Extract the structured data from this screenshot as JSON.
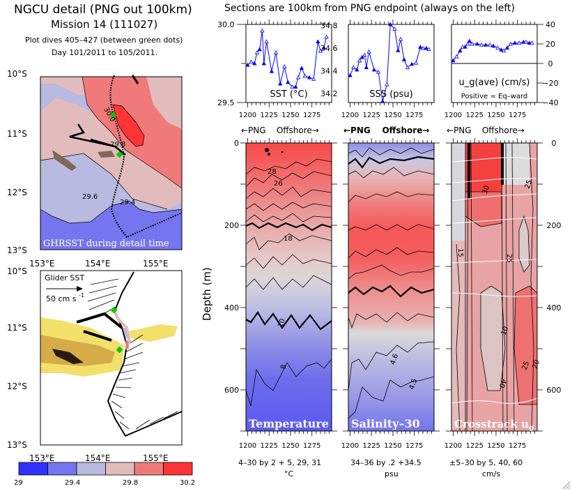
{
  "header": {
    "title": "NGCU detail (PNG out 100km)",
    "mission": "Mission 14 (111027)",
    "dives": "Plot dives 405–427 (between green dots)",
    "days": "Day 101/2011 to 105/2011.",
    "sections_title": "Sections are 100km from PNG endpoint (always on the left)"
  },
  "maps": {
    "lat_ticks": [
      "10°S",
      "11°S",
      "12°S",
      "13°S"
    ],
    "lon_ticks": [
      "153°E",
      "154°E",
      "155°E"
    ],
    "top_map_label": "GHRSST during detail time",
    "top_map_contour_labels": [
      "30.0",
      "29.8",
      "29.6",
      "29.4"
    ],
    "bottom_map_label": "Glider SST ",
    "bottom_map_scale_label": "50 cm s",
    "bottom_map_scale_sup": "-1",
    "colorbar": {
      "ticks": [
        "29",
        "29.4",
        "29.8",
        "30.2"
      ],
      "colors": [
        "#3030ff",
        "#7575ef",
        "#b8bae0",
        "#e2bcbc",
        "#f07a7a",
        "#fd3535"
      ]
    },
    "marker_color": "#00cc00"
  },
  "sections": {
    "offshore_caption": "←PNG    Offshore→",
    "x_ticks": [
      "1200",
      "1225",
      "1250",
      "1275"
    ],
    "depth_axis_label": "Depth (m)",
    "depth_ticks_left": [
      "0",
      "200",
      "400",
      "600"
    ],
    "depth_ticks_right": [
      "0",
      "200",
      "400",
      "600"
    ],
    "panels": [
      {
        "name": "Temperature",
        "contour_spec": "4–30 by 2 + 5, 29, 31",
        "units": "°C",
        "contour_labels": [
          "28",
          "26",
          "18",
          "10",
          "8"
        ]
      },
      {
        "name": "Salinity–30",
        "contour_spec": "34–36 by .2 +34.5",
        "units": "psu",
        "contour_labels": [
          "4.6",
          "4.5"
        ]
      },
      {
        "name": "Crosstrack u",
        "name_sub": "g",
        "contour_spec": "±5–30 by 5, 40, 60",
        "units": "cm/s",
        "contour_labels": [
          "30",
          "25",
          "15",
          "25",
          "40",
          "10",
          "25",
          "20",
          "40"
        ]
      }
    ]
  },
  "chart_data": [
    {
      "type": "line",
      "title": "SST (°C)",
      "xlabel": "←PNG    Offshore→",
      "ylabel": "",
      "xlim": [
        1198,
        1298
      ],
      "ylim": [
        29.5,
        30.0
      ],
      "y_ticks": [
        "30.0",
        "29.5"
      ],
      "x_ticks": [
        "1200",
        "1225",
        "1250",
        "1275"
      ],
      "color": "#0000ff",
      "x": [
        1200,
        1204,
        1208,
        1211,
        1214,
        1217,
        1219,
        1222,
        1228,
        1233,
        1238,
        1243,
        1247,
        1252,
        1256,
        1259,
        1263,
        1267,
        1272,
        1277,
        1282,
        1285,
        1289,
        1292
      ],
      "values": [
        29.74,
        29.76,
        29.75,
        29.82,
        29.84,
        29.96,
        29.75,
        29.89,
        29.7,
        29.82,
        29.62,
        29.73,
        29.63,
        29.6,
        29.6,
        29.66,
        29.72,
        29.67,
        29.66,
        29.65,
        29.89,
        29.83,
        29.85,
        29.92
      ]
    },
    {
      "type": "line",
      "title": "SSS (psu)",
      "xlabel": "←PNG    Offshore→",
      "xlim": [
        1198,
        1298
      ],
      "ylim": [
        34.12,
        34.81
      ],
      "y_ticks": [
        "34.8",
        "34.6",
        "34.4",
        "34.2"
      ],
      "x_ticks": [
        "1200",
        "1225",
        "1250",
        "1275"
      ],
      "color": "#0000ff",
      "x": [
        1200,
        1204,
        1208,
        1211,
        1214,
        1217,
        1219,
        1222,
        1228,
        1233,
        1238,
        1243,
        1247,
        1252,
        1256,
        1259,
        1263,
        1267,
        1272,
        1277,
        1282,
        1285,
        1289,
        1292
      ],
      "values": [
        34.36,
        34.43,
        34.41,
        34.49,
        34.52,
        34.54,
        34.43,
        34.57,
        34.41,
        34.39,
        34.13,
        34.28,
        34.81,
        34.77,
        34.58,
        34.68,
        34.5,
        34.43,
        34.46,
        34.47,
        34.61,
        34.6,
        34.6,
        34.59
      ]
    },
    {
      "type": "line",
      "title": "u_g(ave) (cm/s)",
      "subtitle": "Positive = Eq–ward",
      "xlim": [
        1198,
        1298
      ],
      "ylim": [
        -40,
        40
      ],
      "y_ticks": [
        "40",
        "20",
        "0",
        "−20",
        "−40"
      ],
      "x_ticks": [
        "1200",
        "1225",
        "1250",
        "1275"
      ],
      "color": "#0000ff",
      "x": [
        1200,
        1204,
        1208,
        1211,
        1214,
        1217,
        1219,
        1222,
        1228,
        1233,
        1238,
        1243,
        1247,
        1252,
        1256,
        1259,
        1263,
        1267,
        1272,
        1277,
        1282,
        1285,
        1289,
        1292
      ],
      "values": [
        3,
        7,
        13,
        17,
        17,
        20,
        23,
        20,
        20,
        19,
        19,
        19,
        18,
        16,
        14,
        13,
        16,
        20,
        21,
        21,
        22,
        22,
        21,
        21
      ]
    },
    {
      "type": "heatmap",
      "title": "Temperature",
      "xlim": [
        1198,
        1298
      ],
      "ylim": [
        700,
        0
      ],
      "contour_levels_c": [
        30,
        28,
        26,
        24,
        22,
        20,
        18,
        16,
        14,
        12,
        10,
        8,
        6,
        4
      ]
    },
    {
      "type": "heatmap",
      "title": "Salinity–30",
      "xlim": [
        1198,
        1298
      ],
      "ylim": [
        700,
        0
      ],
      "contour_levels_psu": [
        34.0,
        34.2,
        34.4,
        34.5,
        34.6,
        34.8,
        35.0,
        35.2,
        35.4,
        35.6
      ]
    },
    {
      "type": "heatmap",
      "title": "Crosstrack u_g",
      "xlim": [
        1198,
        1298
      ],
      "ylim": [
        700,
        0
      ],
      "contour_levels_cms": [
        -30,
        -25,
        -20,
        -15,
        -10,
        -5,
        5,
        10,
        15,
        20,
        25,
        30,
        40,
        60
      ]
    }
  ]
}
